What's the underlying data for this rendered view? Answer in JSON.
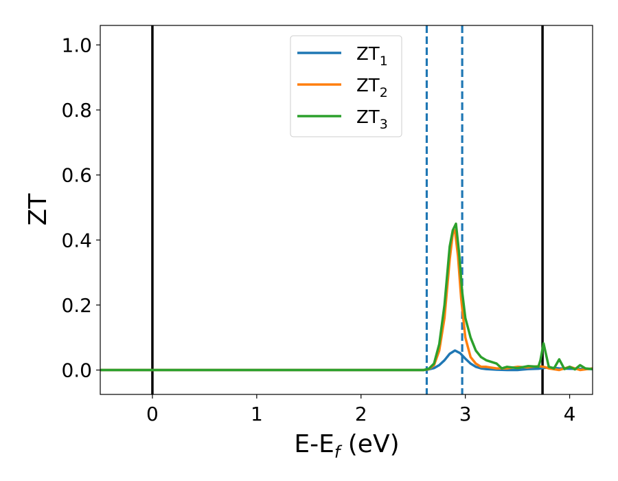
{
  "chart_data": {
    "type": "line",
    "xlabel": "E-E",
    "xlabel_sub": "f",
    "xlabel_unit": " (eV)",
    "ylabel": "ZT",
    "xlim": [
      -0.5,
      4.22
    ],
    "ylim": [
      -0.075,
      1.06
    ],
    "xticks": [
      0,
      1,
      2,
      3,
      4
    ],
    "xtick_labels": [
      "0",
      "1",
      "2",
      "3",
      "4"
    ],
    "yticks": [
      0.0,
      0.2,
      0.4,
      0.6,
      0.8,
      1.0
    ],
    "ytick_labels": [
      "0.0",
      "0.2",
      "0.4",
      "0.6",
      "0.8",
      "1.0"
    ],
    "grid": false,
    "legend_position": "top-center",
    "vlines": [
      {
        "x": 0.0,
        "style": "solid",
        "color": "#000000"
      },
      {
        "x": 3.74,
        "style": "solid",
        "color": "#000000"
      },
      {
        "x": 2.63,
        "style": "dashed",
        "color": "#1f77b4"
      },
      {
        "x": 2.97,
        "style": "dashed",
        "color": "#1f77b4"
      }
    ],
    "series": [
      {
        "name": "ZT",
        "name_sub": "1",
        "color": "#1f77b4",
        "x": [
          -0.5,
          2.6,
          2.65,
          2.7,
          2.75,
          2.8,
          2.85,
          2.9,
          2.95,
          3.0,
          3.05,
          3.1,
          3.15,
          3.2,
          3.3,
          3.4,
          3.5,
          3.6,
          3.7,
          3.8,
          3.9,
          4.0,
          4.22
        ],
        "y": [
          0.0,
          0.0,
          0.002,
          0.006,
          0.015,
          0.03,
          0.05,
          0.06,
          0.052,
          0.035,
          0.02,
          0.01,
          0.005,
          0.003,
          0.001,
          0.0,
          0.0,
          0.003,
          0.004,
          0.008,
          0.005,
          0.004,
          0.003
        ]
      },
      {
        "name": "ZT",
        "name_sub": "2",
        "color": "#ff7f0e",
        "x": [
          -0.5,
          2.6,
          2.65,
          2.7,
          2.75,
          2.8,
          2.85,
          2.88,
          2.9,
          2.93,
          2.96,
          3.0,
          3.05,
          3.1,
          3.15,
          3.2,
          3.3,
          3.4,
          3.5,
          3.6,
          3.7,
          3.75,
          3.8,
          3.9,
          4.0,
          4.1,
          4.22
        ],
        "y": [
          0.0,
          0.0,
          0.003,
          0.015,
          0.06,
          0.16,
          0.34,
          0.42,
          0.43,
          0.35,
          0.22,
          0.1,
          0.04,
          0.02,
          0.01,
          0.01,
          0.005,
          0.005,
          0.01,
          0.008,
          0.012,
          0.01,
          0.005,
          0.0,
          0.01,
          0.0,
          0.005
        ]
      },
      {
        "name": "ZT",
        "name_sub": "3",
        "color": "#2ca02c",
        "x": [
          -0.5,
          2.6,
          2.65,
          2.7,
          2.75,
          2.8,
          2.85,
          2.88,
          2.91,
          2.94,
          2.97,
          3.0,
          3.05,
          3.1,
          3.15,
          3.2,
          3.3,
          3.35,
          3.4,
          3.5,
          3.6,
          3.7,
          3.72,
          3.75,
          3.8,
          3.85,
          3.9,
          3.95,
          4.0,
          4.05,
          4.1,
          4.15,
          4.22
        ],
        "y": [
          0.0,
          0.0,
          0.004,
          0.02,
          0.08,
          0.2,
          0.38,
          0.43,
          0.45,
          0.36,
          0.24,
          0.16,
          0.1,
          0.06,
          0.04,
          0.03,
          0.02,
          0.005,
          0.01,
          0.006,
          0.012,
          0.01,
          0.03,
          0.082,
          0.01,
          0.005,
          0.033,
          0.003,
          0.01,
          0.002,
          0.015,
          0.005,
          0.003
        ]
      }
    ]
  }
}
